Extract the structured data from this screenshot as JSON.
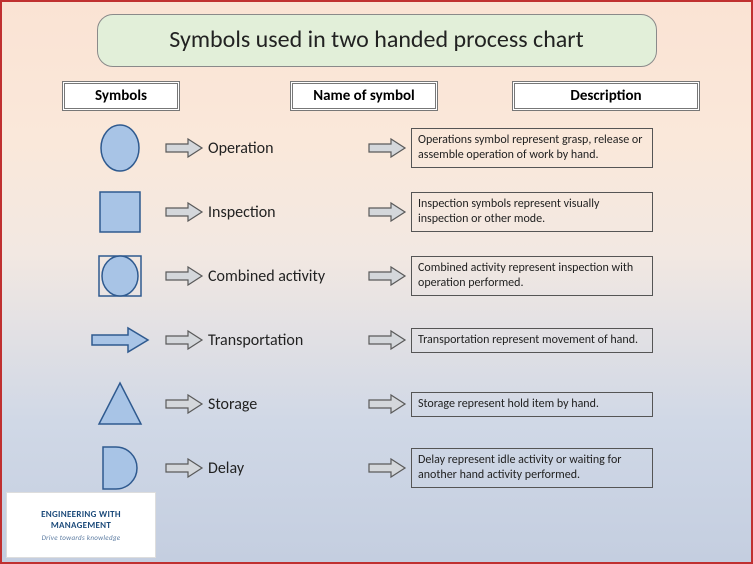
{
  "title": "Symbols used in two handed process chart",
  "headers": {
    "symbols": "Symbols",
    "name": "Name of symbol",
    "description": "Description"
  },
  "colors": {
    "shape_fill": "#a8c4e6",
    "shape_stroke": "#2f5a8f",
    "arrow_fill": "#d4d7db",
    "arrow_stroke": "#5a5a5a",
    "title_bg": "#e2efd9",
    "frame_border": "#c03030",
    "desc_border": "#555555",
    "hdr_bg": "#ffffff",
    "text": "#222222"
  },
  "rows": [
    {
      "shape": "ellipse",
      "name": "Operation",
      "description": "Operations symbol represent grasp, release or assemble operation of work by hand."
    },
    {
      "shape": "square",
      "name": "Inspection",
      "description": "Inspection symbols represent visually inspection or other mode."
    },
    {
      "shape": "combined",
      "name": "Combined activity",
      "description": "Combined activity represent inspection with operation performed."
    },
    {
      "shape": "arrow",
      "name": "Transportation",
      "description": "Transportation represent movement of hand."
    },
    {
      "shape": "triangle",
      "name": "Storage",
      "description": "Storage represent hold item by hand."
    },
    {
      "shape": "dshape",
      "name": "Delay",
      "description": "Delay represent idle activity or waiting for another hand activity performed."
    }
  ],
  "logo": {
    "line1": "ENGINEERING WITH",
    "line2": "MANAGEMENT",
    "tagline": "Drive towards knowledge"
  }
}
